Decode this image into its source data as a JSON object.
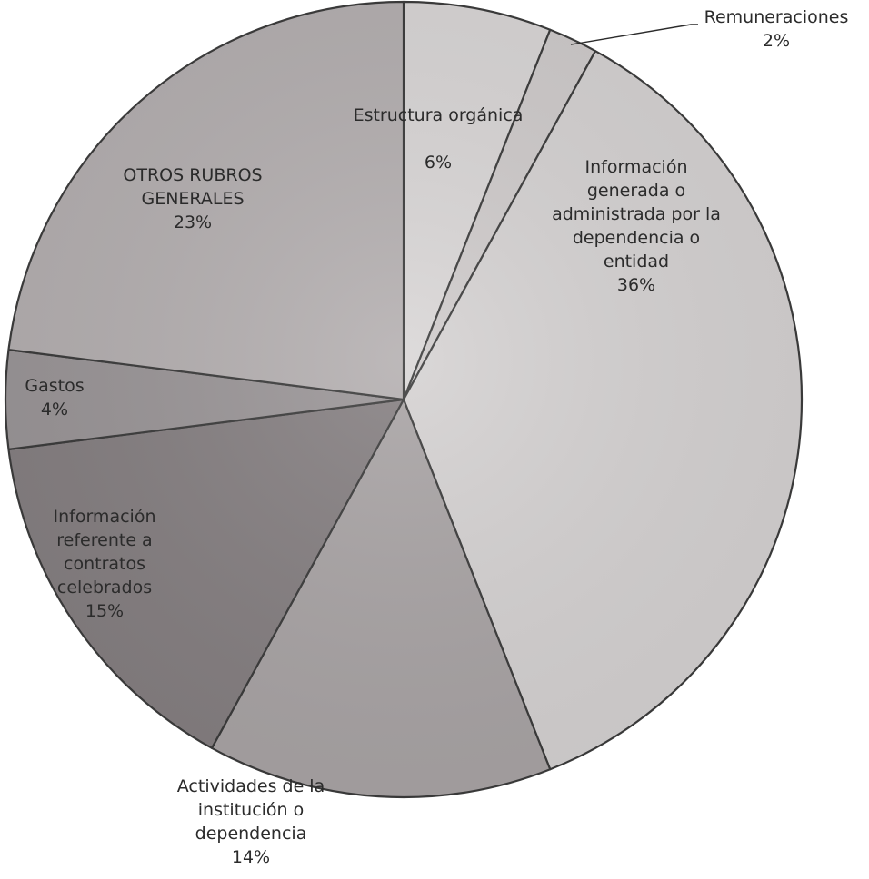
{
  "chart_data": {
    "type": "pie",
    "start_angle_deg": 0,
    "direction": "clockwise",
    "slices": [
      {
        "name": "Estructura orgánica",
        "lines": [
          "Estructura orgánica",
          "",
          "6%"
        ],
        "percent_label": "6%",
        "value": 6,
        "color": "#d9d6d6"
      },
      {
        "name": "Remuneraciones",
        "lines": [
          "Remuneraciones",
          "2%"
        ],
        "percent_label": "2%",
        "value": 2,
        "color": "#cfcbcb"
      },
      {
        "name": "Información generada o administrada por la dependencia o entidad",
        "lines": [
          "Información",
          "generada o",
          "administrada por la",
          "dependencia o",
          "entidad",
          "36%"
        ],
        "percent_label": "36%",
        "value": 36,
        "color": "#d5d2d2"
      },
      {
        "name": "Actividades de la institución o dependencia",
        "lines": [
          "Actividades de la",
          "institución o",
          "dependencia",
          "14%"
        ],
        "percent_label": "14%",
        "value": 14,
        "color": "#a9a4a5"
      },
      {
        "name": "Información referente a contratos celebrados",
        "lines": [
          "Información",
          "referente a",
          "contratos",
          "celebrados",
          "15%"
        ],
        "percent_label": "15%",
        "value": 15,
        "color": "#857f81"
      },
      {
        "name": "Gastos",
        "lines": [
          "Gastos",
          "4%"
        ],
        "percent_label": "4%",
        "value": 4,
        "color": "#9a9597"
      },
      {
        "name": "OTROS RUBROS GENERALES",
        "lines": [
          "OTROS RUBROS",
          "GENERALES",
          "23%"
        ],
        "percent_label": "23%",
        "value": 23,
        "color": "#b4afb0"
      }
    ]
  }
}
